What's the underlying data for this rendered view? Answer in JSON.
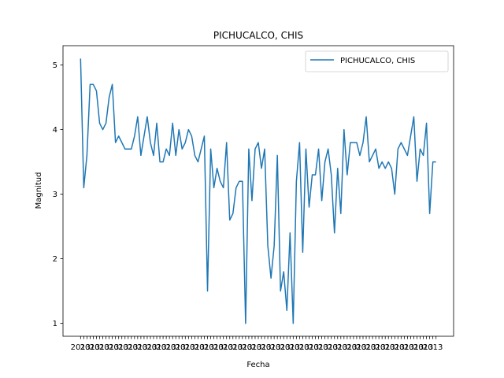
{
  "chart_data": {
    "type": "line",
    "title": "PICHUCALCO, CHIS",
    "xlabel": "Fecha",
    "ylabel": "Magnitud",
    "ylim": [
      0.8,
      5.3
    ],
    "yticks": [
      1,
      2,
      3,
      4,
      5
    ],
    "grid": false,
    "legend_position": "top-right",
    "x_tick_labels": "overlapping date strings (unreadable)",
    "x_tick_label_text": "2013",
    "series": [
      {
        "name": "PICHUCALCO, CHIS",
        "color": "#1f77b4",
        "values": [
          5.1,
          3.1,
          3.6,
          4.7,
          4.7,
          4.6,
          4.1,
          4.0,
          4.1,
          4.5,
          4.7,
          3.8,
          3.9,
          3.8,
          3.7,
          3.7,
          3.7,
          3.9,
          4.2,
          3.6,
          3.9,
          4.2,
          3.8,
          3.6,
          4.1,
          3.5,
          3.5,
          3.7,
          3.6,
          4.1,
          3.6,
          4.0,
          3.7,
          3.8,
          4.0,
          3.9,
          3.6,
          3.5,
          3.7,
          3.9,
          1.5,
          3.7,
          3.1,
          3.4,
          3.2,
          3.1,
          3.8,
          2.6,
          2.7,
          3.1,
          3.2,
          3.2,
          1.0,
          3.7,
          2.9,
          3.7,
          3.8,
          3.4,
          3.7,
          2.2,
          1.7,
          2.2,
          3.6,
          1.5,
          1.8,
          1.2,
          2.4,
          1.0,
          3.2,
          3.8,
          2.1,
          3.7,
          2.8,
          3.3,
          3.3,
          3.7,
          2.9,
          3.5,
          3.7,
          3.3,
          2.4,
          3.4,
          2.7,
          4.0,
          3.3,
          3.8,
          3.8,
          3.8,
          3.6,
          3.8,
          4.2,
          3.5,
          3.6,
          3.7,
          3.4,
          3.5,
          3.4,
          3.5,
          3.4,
          3.0,
          3.7,
          3.8,
          3.7,
          3.6,
          3.9,
          4.2,
          3.2,
          3.7,
          3.6,
          4.1,
          2.7,
          3.5,
          3.5
        ]
      }
    ]
  }
}
